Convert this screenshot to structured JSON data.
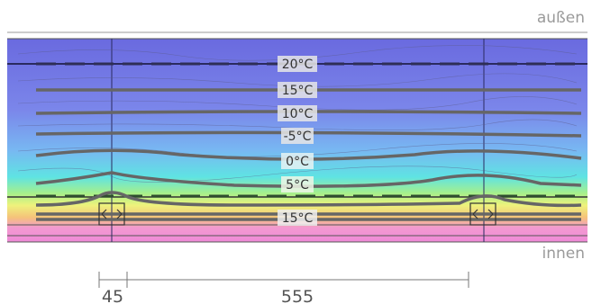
{
  "labels": {
    "outside": "außen",
    "inside": "innen"
  },
  "isotherms": [
    {
      "text": "20°C"
    },
    {
      "text": "15°C"
    },
    {
      "text": "10°C"
    },
    {
      "text": "-5°C"
    },
    {
      "text": "0°C"
    },
    {
      "text": "5°C"
    },
    {
      "text": "15°C"
    }
  ],
  "dimensions": {
    "left": "45",
    "right": "555"
  },
  "colors": {
    "cold": "#6f6fe0",
    "mid_blue": "#7aa3f0",
    "cyan": "#5fe0e6",
    "green": "#9ef08a",
    "yellow": "#f2f27a",
    "warm": "#f6b07a",
    "pink": "#f08ad8"
  }
}
